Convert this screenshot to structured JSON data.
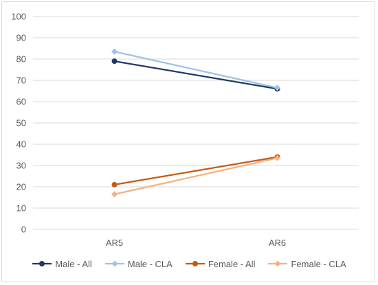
{
  "chart_data": {
    "type": "line",
    "categories": [
      "AR5",
      "AR6"
    ],
    "ylim": [
      0,
      100
    ],
    "yticks": [
      0,
      10,
      20,
      30,
      40,
      50,
      60,
      70,
      80,
      90,
      100
    ],
    "grid": true,
    "legend_position": "bottom",
    "series": [
      {
        "name": "Male - All",
        "values": [
          79,
          66
        ],
        "color": "#1f3864",
        "marker": "circle"
      },
      {
        "name": "Male - CLA",
        "values": [
          83.5,
          66.5
        ],
        "color": "#9dc3e6",
        "marker": "diamond"
      },
      {
        "name": "Female - All",
        "values": [
          21,
          34
        ],
        "color": "#c55a11",
        "marker": "circle"
      },
      {
        "name": "Female - CLA",
        "values": [
          16.5,
          33.5
        ],
        "color": "#f4b183",
        "marker": "diamond"
      }
    ]
  }
}
